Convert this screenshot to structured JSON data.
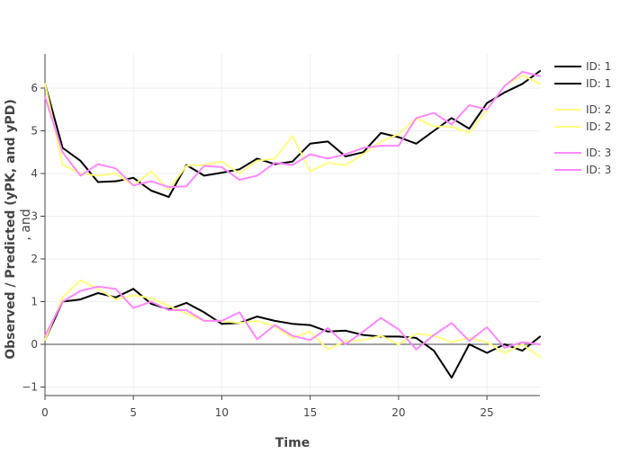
{
  "chart_data": {
    "type": "line",
    "title": "",
    "xlabel": "Time",
    "ylabel": "Observed / Predicted (yPK, and yPD)",
    "ylabel_secondary": ", and",
    "xlim": [
      0,
      28
    ],
    "ylim": [
      -1.2,
      6.8
    ],
    "xticks": [
      0,
      5,
      10,
      15,
      20,
      25
    ],
    "yticks": [
      -1,
      0,
      1,
      2,
      3,
      4,
      5,
      6
    ],
    "ytick_labels": [
      "−1",
      "0",
      "1",
      "2",
      "3",
      "4",
      "5",
      "6"
    ],
    "grid": true,
    "zero_line": true,
    "legend_position": "right",
    "x": [
      0,
      1,
      2,
      3,
      4,
      5,
      6,
      7,
      8,
      9,
      10,
      11,
      12,
      13,
      14,
      15,
      16,
      17,
      18,
      19,
      20,
      21,
      22,
      23,
      24,
      25,
      26,
      27,
      28
    ],
    "series": [
      {
        "name": "ID: 1",
        "color": "#000000",
        "values": [
          6.1,
          4.6,
          4.3,
          3.8,
          3.82,
          3.9,
          3.6,
          3.45,
          4.2,
          3.95,
          4.02,
          4.1,
          4.35,
          4.22,
          4.28,
          4.7,
          4.75,
          4.4,
          4.5,
          4.95,
          4.85,
          4.7,
          5.0,
          5.3,
          5.05,
          5.65,
          5.9,
          6.1,
          6.4
        ]
      },
      {
        "name": "ID: 1",
        "color": "#000000",
        "values": [
          0.1,
          1.0,
          1.05,
          1.2,
          1.1,
          1.3,
          0.95,
          0.82,
          0.97,
          0.75,
          0.48,
          0.5,
          0.65,
          0.55,
          0.48,
          0.45,
          0.3,
          0.32,
          0.22,
          0.18,
          0.18,
          0.15,
          -0.15,
          -0.78,
          0.0,
          -0.2,
          0.0,
          -0.15,
          0.18
        ]
      },
      {
        "name": "ID: 2",
        "color": "#ffff80",
        "values": [
          6.1,
          4.2,
          4.0,
          3.95,
          4.0,
          3.72,
          4.05,
          3.62,
          4.18,
          4.2,
          4.28,
          4.0,
          4.3,
          4.35,
          4.88,
          4.05,
          4.25,
          4.2,
          4.45,
          4.75,
          4.92,
          5.3,
          5.1,
          5.1,
          4.95,
          5.5,
          6.05,
          6.3,
          6.1
        ]
      },
      {
        "name": "ID: 2",
        "color": "#ffff80",
        "values": [
          0.1,
          1.1,
          1.5,
          1.3,
          1.05,
          1.15,
          1.08,
          0.9,
          0.72,
          0.55,
          0.55,
          0.5,
          0.55,
          0.42,
          0.15,
          0.3,
          -0.12,
          0.08,
          0.1,
          0.2,
          0.0,
          0.25,
          0.2,
          0.05,
          0.15,
          0.05,
          -0.2,
          0.0,
          -0.3
        ]
      },
      {
        "name": "ID: 3",
        "color": "#ff88ff",
        "values": [
          5.8,
          4.5,
          3.95,
          4.22,
          4.12,
          3.72,
          3.82,
          3.68,
          3.7,
          4.18,
          4.15,
          3.85,
          3.95,
          4.25,
          4.2,
          4.45,
          4.35,
          4.45,
          4.6,
          4.65,
          4.65,
          5.3,
          5.42,
          5.15,
          5.6,
          5.5,
          6.05,
          6.38,
          6.28
        ]
      },
      {
        "name": "ID: 3",
        "color": "#ff88ff",
        "values": [
          0.2,
          1.0,
          1.25,
          1.35,
          1.3,
          0.85,
          1.0,
          0.8,
          0.8,
          0.55,
          0.55,
          0.75,
          0.12,
          0.45,
          0.2,
          0.1,
          0.38,
          0.0,
          0.3,
          0.62,
          0.35,
          -0.12,
          0.22,
          0.5,
          0.08,
          0.4,
          -0.08,
          0.05,
          0.0
        ]
      }
    ]
  }
}
